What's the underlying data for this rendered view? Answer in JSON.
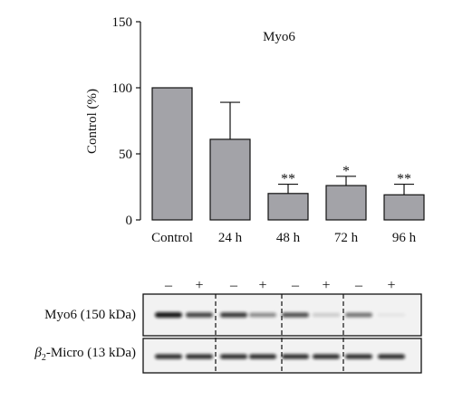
{
  "chart_data": {
    "type": "bar",
    "title": "Myo6",
    "ylabel": "Control (%)",
    "xlabel": "",
    "ylim": [
      0,
      150
    ],
    "yticks": [
      0,
      50,
      100,
      150
    ],
    "categories": [
      "Control",
      "24 h",
      "48 h",
      "72 h",
      "96 h"
    ],
    "values": [
      100,
      61,
      20,
      26,
      19
    ],
    "error_upper": [
      100,
      89,
      27,
      33,
      27
    ],
    "significance": [
      "",
      "",
      "**",
      "*",
      "**"
    ],
    "bar_color": "#a3a3a8",
    "grid": false
  },
  "blot": {
    "signs": [
      "–",
      "+",
      "–",
      "+",
      "–",
      "+",
      "–",
      "+"
    ],
    "rows": [
      {
        "label_main": "Myo6 (150 kDa)",
        "label_sub": "",
        "label_rest": "",
        "intensities": [
          0.95,
          0.75,
          0.8,
          0.45,
          0.7,
          0.18,
          0.55,
          0.06
        ]
      },
      {
        "label_main": "β",
        "label_sub": "2",
        "label_rest": "-Micro (13 kDa)",
        "intensities": [
          0.85,
          0.85,
          0.85,
          0.85,
          0.85,
          0.85,
          0.85,
          0.85
        ]
      }
    ]
  }
}
